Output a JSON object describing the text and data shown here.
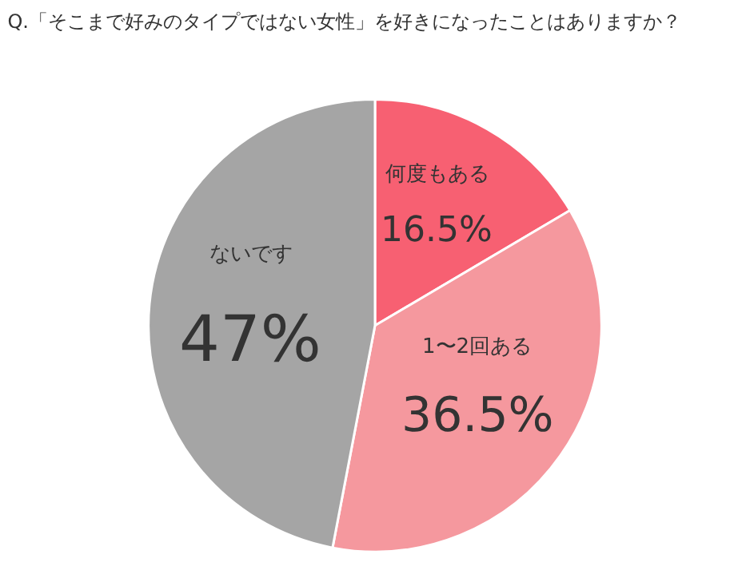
{
  "chart_data": {
    "type": "pie",
    "title": "Q.「そこまで好みのタイプではない女性」を好きになったことはありますか？",
    "categories": [
      "何度もある",
      "1〜2回ある",
      "ないです"
    ],
    "values": [
      16.5,
      36.5,
      47
    ],
    "value_labels": [
      "16.5%",
      "36.5%",
      "47%"
    ],
    "colors": [
      "#f76072",
      "#f5989e",
      "#a5a5a5"
    ],
    "legend": false
  }
}
